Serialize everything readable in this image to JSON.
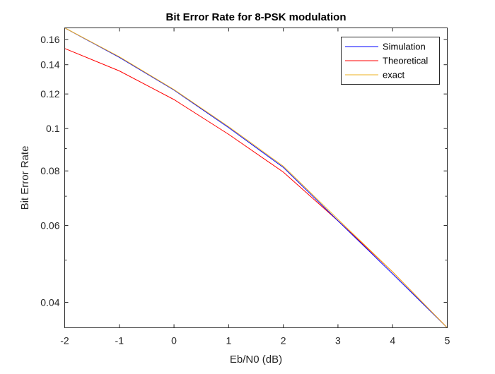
{
  "chart_data": {
    "type": "line",
    "title": "Bit Error Rate for 8-PSK modulation",
    "xlabel": "Eb/N0 (dB)",
    "ylabel": "Bit Error Rate",
    "yscale": "log",
    "xlim": [
      -2,
      5
    ],
    "ylim": [
      0.035,
      0.17
    ],
    "xticks": [
      -2,
      -1,
      0,
      1,
      2,
      3,
      4,
      5
    ],
    "xtick_labels": [
      "-2",
      "-1",
      "0",
      "1",
      "2",
      "3",
      "4",
      "5"
    ],
    "yticks": [
      0.04,
      0.06,
      0.08,
      0.1,
      0.12,
      0.14,
      0.16
    ],
    "ytick_labels": [
      "0.04",
      "0.06",
      "0.08",
      "0.1",
      "0.12",
      "0.14",
      "0.16"
    ],
    "x": [
      -2,
      -1,
      0,
      1,
      2,
      3,
      4,
      5
    ],
    "series": [
      {
        "name": "Simulation",
        "color": "#0000ff",
        "values": [
          0.17,
          0.1455,
          0.1225,
          0.1005,
          0.0815,
          0.0615,
          0.0465,
          0.035
        ]
      },
      {
        "name": "Theoretical",
        "color": "#ff0000",
        "values": [
          0.1525,
          0.1355,
          0.1165,
          0.097,
          0.0795,
          0.0615,
          0.047,
          0.035
        ]
      },
      {
        "name": "exact",
        "color": "#edb120",
        "values": [
          0.17,
          0.146,
          0.1228,
          0.101,
          0.082,
          0.062,
          0.047,
          0.035
        ]
      }
    ],
    "legend_position": "top-right",
    "grid": false
  }
}
